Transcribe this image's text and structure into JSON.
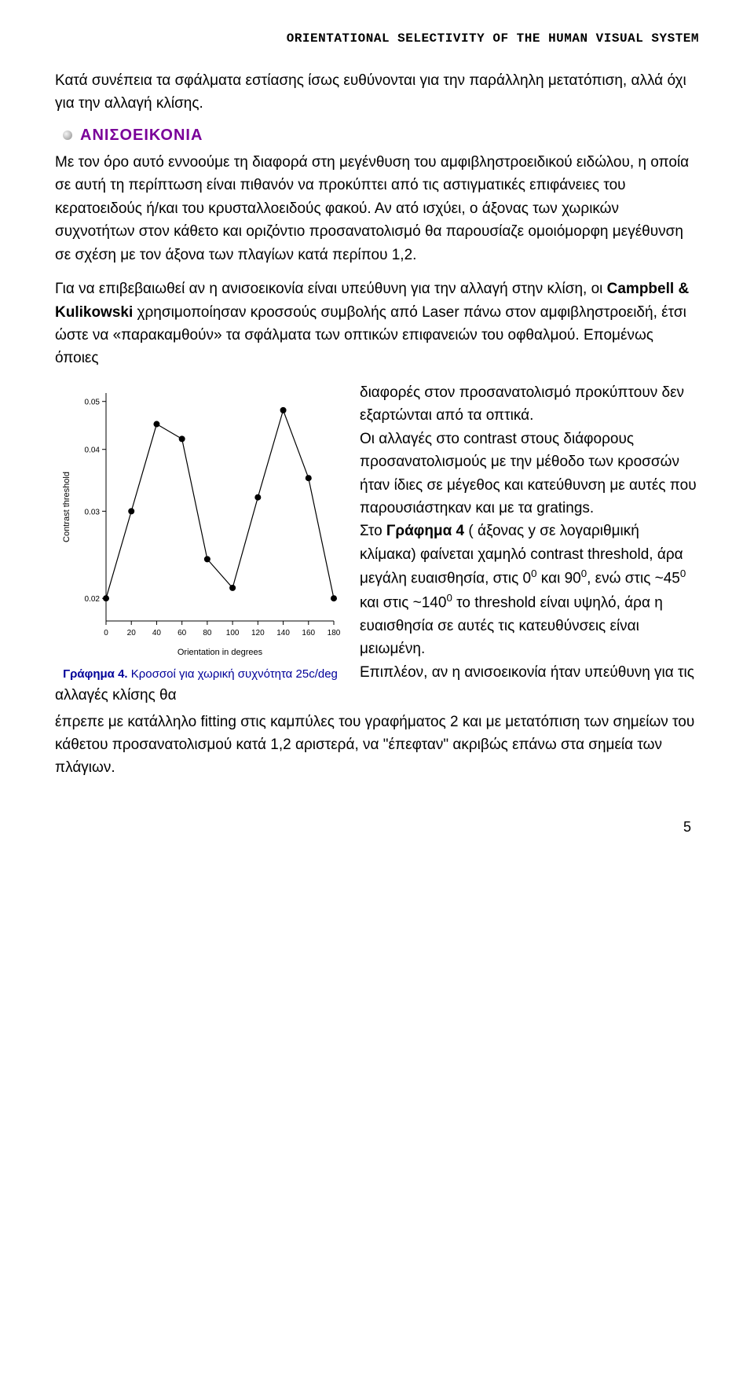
{
  "header": {
    "title": "ORIENTATIONAL SELECTIVITY OF THE HUMAN VISUAL SYSTEM"
  },
  "intro_para": "Κατά συνέπεια τα σφάλματα εστίασης ίσως ευθύνονται για την παράλληλη μετατόπιση, αλλά όχι για την αλλαγή κλίσης.",
  "section": {
    "heading": "ΑΝΙΣΟΕΙΚΟΝΙΑ",
    "heading_color": "#7a0099"
  },
  "body_para": "Με τον όρο αυτό εννοούμε τη διαφορά στη μεγένθυση του αμφιβληστροειδικού ειδώλου, η οποία σε αυτή τη περίπτωση είναι πιθανόν να προκύπτει από τις αστιγματικές επιφάνειες του κερατοειδούς ή/και του κρυσταλλοειδούς φακού. Αν ατό ισχύει, ο άξονας των χωρικών συχνοτήτων στον κάθετο και οριζόντιο προσανατολισμό θα παρουσίαζε ομοιόμορφη μεγέθυνση σε σχέση με τον άξονα των πλαγίων κατά περίπου 1,2.",
  "body_para2_prefix": "Για να επιβεβαιωθεί αν η ανισοεικονία είναι υπεύθυνη για την αλλαγή στην κλίση, οι ",
  "authors": "Campbell & Kulikowski",
  "body_para2_suffix": " χρησιμοποίησαν κροσσούς συμβολής από Laser πάνω στον αμφιβληστροειδή, έτσι ώστε να «παρακαμθούν» τα σφάλματα των οπτικών επιφανειών του οφθαλμού. Επομένως όποιες",
  "right_text_1": "διαφορές στον προσανατολισμό προκύπτουν δεν εξαρτώνται από τα οπτικά.",
  "right_text_2": "Οι αλλαγές στο contrast στους διάφορους προσανατολισμούς με την μέθοδο των κροσσών ήταν ίδιες σε μέγεθος και κατεύθυνση με αυτές που παρουσιάστηκαν και με τα gratings.",
  "right_text_3a": "Στο ",
  "right_text_3_bold": "Γράφημα 4",
  "right_text_3b": " ( άξονας y σε λογαριθμική κλίμακα) φαίνεται χαμηλό contrast threshold, άρα μεγάλη ευαισθησία, στις 0",
  "right_text_3c": " και 90",
  "right_text_3d": ", ενώ στις ~45",
  "right_text_3e": " και στις ~140",
  "right_text_3f": " το threshold είναι υψηλό, άρα η ευαισθησία σε αυτές τις κατευθύνσεις είναι μειωμένη.",
  "right_text_4": "Επιπλέον, αν η ανισοεικονία ήταν υπεύθυνη για τις αλλαγές κλίσης θα",
  "after_float": "έπρεπε με κατάλληλο fitting στις καμπύλες του γραφήματος 2 και με μετατόπιση των σημείων του κάθετου προσανατολισμού κατά 1,2 αριστερά, να \"έπεφταν\" ακριβώς επάνω στα σημεία των πλάγιων.",
  "figure": {
    "caption_bold": "Γράφημα 4.",
    "caption_rest": " Κροσσοί για χωρική συχνότητα 25c/deg",
    "caption_color": "#000099",
    "chart": {
      "type": "line",
      "xlabel": "Orientation in degrees",
      "ylabel": "Contrast threshold",
      "x_ticks": [
        0,
        20,
        40,
        60,
        80,
        100,
        120,
        140,
        160,
        180
      ],
      "y_ticks": [
        0.02,
        0.03,
        0.04,
        0.05
      ],
      "y_scale": "log",
      "xlim": [
        0,
        180
      ],
      "ylim": [
        0.018,
        0.052
      ],
      "points_x": [
        0,
        20,
        40,
        60,
        80,
        100,
        120,
        140,
        160,
        180
      ],
      "points_y": [
        0.02,
        0.03,
        0.045,
        0.042,
        0.024,
        0.021,
        0.032,
        0.048,
        0.035,
        0.02
      ],
      "line_color": "#000000",
      "line_width": 1.2,
      "marker": "circle",
      "marker_fill": "#000000",
      "marker_size": 4,
      "background_color": "#ffffff",
      "axis_color": "#000000",
      "tick_fontsize": 10,
      "label_fontsize": 11
    }
  },
  "page_number": "5",
  "superscript_zero": "0"
}
